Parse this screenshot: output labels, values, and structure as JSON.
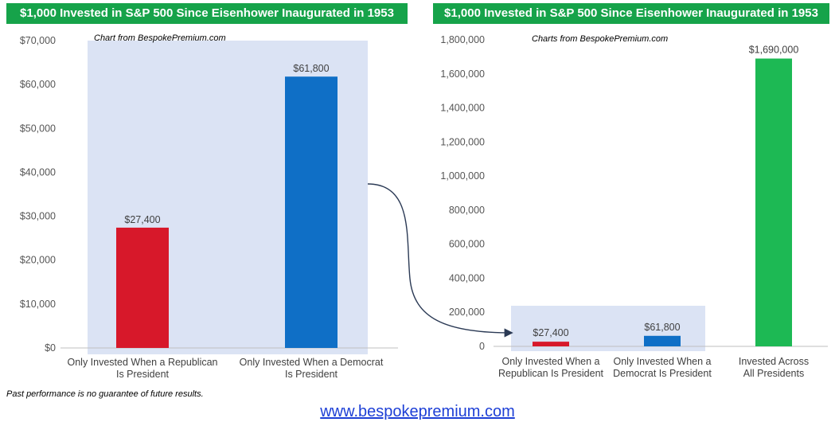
{
  "footer": {
    "disclaimer": "Past performance is no guarantee of future results.",
    "website": "www.bespokepremium.com"
  },
  "colors": {
    "banner": "#16a34a",
    "republican": "#d7182a",
    "democrat": "#0f6fc6",
    "all": "#1db954",
    "highlight": "#dbe3f4",
    "arrow": "#2b3a55"
  },
  "chart_data": [
    {
      "type": "bar",
      "title": "$1,000 Invested in S&P 500 Since Eisenhower Inaugurated in 1953",
      "subtitle": "Chart from BespokePremium.com",
      "categories": [
        "Only Invested When a Republican Is President",
        "Only Invested When a Democrat Is President"
      ],
      "values": [
        27400,
        61800
      ],
      "data_labels": [
        "$27,400",
        "$61,800"
      ],
      "bar_colors": [
        "#d7182a",
        "#0f6fc6"
      ],
      "ylim": [
        0,
        70000
      ],
      "yticks": [
        0,
        10000,
        20000,
        30000,
        40000,
        50000,
        60000,
        70000
      ],
      "ytick_labels": [
        "$0",
        "$10,000",
        "$20,000",
        "$30,000",
        "$40,000",
        "$50,000",
        "$60,000",
        "$70,000"
      ],
      "grid": false,
      "legend": "none"
    },
    {
      "type": "bar",
      "title": "$1,000 Invested in S&P 500 Since Eisenhower Inaugurated in 1953",
      "subtitle": "Charts from BespokePremium.com",
      "categories": [
        "Only Invested When a Republican Is President",
        "Only Invested When a Democrat Is President",
        "Invested Across All Presidents"
      ],
      "values": [
        27400,
        61800,
        1690000
      ],
      "data_labels": [
        "$27,400",
        "$61,800",
        "$1,690,000"
      ],
      "bar_colors": [
        "#d7182a",
        "#0f6fc6",
        "#1db954"
      ],
      "ylim": [
        0,
        1800000
      ],
      "yticks": [
        0,
        200000,
        400000,
        600000,
        800000,
        1000000,
        1200000,
        1400000,
        1600000,
        1800000
      ],
      "ytick_labels": [
        "0",
        "200,000",
        "400,000",
        "600,000",
        "800,000",
        "1,000,000",
        "1,200,000",
        "1,400,000",
        "1,600,000",
        "1,800,000"
      ],
      "grid": false,
      "legend": "none"
    }
  ]
}
